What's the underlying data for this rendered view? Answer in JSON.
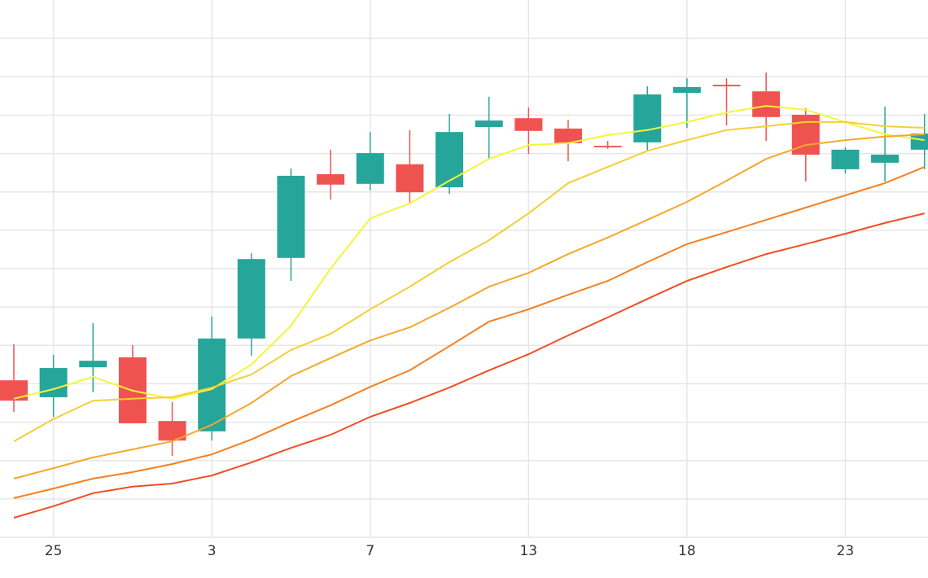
{
  "chart_data": {
    "type": "candlestick",
    "categories": [
      null,
      "25",
      null,
      null,
      null,
      "3",
      null,
      null,
      null,
      "7",
      null,
      null,
      null,
      "13",
      null,
      null,
      null,
      "18",
      null,
      null,
      null,
      "23",
      null,
      null
    ],
    "open": [
      4.09,
      3.65,
      4.43,
      4.69,
      3.03,
      2.76,
      5.18,
      7.28,
      9.46,
      9.21,
      9.72,
      9.12,
      10.69,
      10.92,
      10.65,
      10.2,
      10.29,
      11.58,
      11.79,
      11.62,
      11.01,
      9.59,
      9.76,
      10.1
    ],
    "high": [
      5.03,
      4.75,
      5.58,
      5.01,
      3.52,
      5.75,
      7.4,
      9.61,
      10.1,
      10.56,
      10.61,
      11.03,
      11.48,
      11.2,
      10.88,
      10.33,
      11.75,
      11.96,
      11.96,
      12.11,
      11.18,
      10.16,
      11.22,
      11.03
    ],
    "low": [
      3.27,
      3.14,
      3.78,
      2.97,
      2.12,
      2.52,
      4.73,
      6.68,
      8.8,
      9.04,
      8.7,
      8.95,
      9.84,
      9.99,
      9.8,
      10.12,
      10.06,
      10.67,
      10.73,
      10.33,
      9.27,
      9.48,
      9.27,
      9.59
    ],
    "close": [
      3.56,
      4.41,
      4.6,
      2.97,
      2.52,
      5.18,
      7.25,
      9.42,
      9.19,
      10.01,
      8.99,
      10.56,
      10.86,
      10.59,
      10.27,
      10.16,
      11.54,
      11.73,
      11.75,
      10.95,
      9.97,
      10.1,
      9.97,
      10.52
    ],
    "up_color": "#26a69a",
    "down_color": "#ef5350",
    "series": [
      {
        "color": "#f5f53a",
        "values": [
          3.61,
          3.86,
          4.18,
          3.82,
          3.61,
          3.86,
          4.5,
          5.51,
          7.0,
          8.31,
          8.7,
          9.29,
          9.86,
          10.22,
          10.27,
          10.48,
          10.61,
          10.82,
          11.07,
          11.24,
          11.14,
          10.82,
          10.5,
          10.35
        ]
      },
      {
        "color": "#f5cf35",
        "values": [
          2.5,
          3.08,
          3.56,
          3.61,
          3.65,
          3.9,
          4.24,
          4.88,
          5.3,
          5.94,
          6.53,
          7.17,
          7.74,
          8.44,
          9.23,
          9.65,
          10.07,
          10.35,
          10.61,
          10.71,
          10.82,
          10.82,
          10.71,
          10.67
        ]
      },
      {
        "color": "#f5a82a",
        "values": [
          1.53,
          1.8,
          2.08,
          2.29,
          2.5,
          2.93,
          3.5,
          4.2,
          4.67,
          5.13,
          5.47,
          5.98,
          6.53,
          6.89,
          7.38,
          7.81,
          8.27,
          8.74,
          9.29,
          9.86,
          10.22,
          10.35,
          10.44,
          10.5
        ]
      },
      {
        "color": "#f5801f",
        "values": [
          1.02,
          1.27,
          1.53,
          1.7,
          1.91,
          2.16,
          2.55,
          3.01,
          3.44,
          3.92,
          4.35,
          4.98,
          5.62,
          5.94,
          6.32,
          6.68,
          7.17,
          7.64,
          7.95,
          8.27,
          8.59,
          8.91,
          9.23,
          9.65
        ]
      },
      {
        "color": "#f04e23",
        "values": [
          0.51,
          0.81,
          1.15,
          1.32,
          1.4,
          1.61,
          1.95,
          2.33,
          2.67,
          3.14,
          3.5,
          3.9,
          4.35,
          4.77,
          5.26,
          5.73,
          6.21,
          6.68,
          7.04,
          7.38,
          7.64,
          7.91,
          8.19,
          8.44
        ]
      }
    ],
    "ylim": [
      0,
      14
    ],
    "yticks": [
      0,
      1,
      2,
      3,
      4,
      5,
      6,
      7,
      8,
      9,
      10,
      11,
      12,
      13
    ],
    "grid": true
  }
}
